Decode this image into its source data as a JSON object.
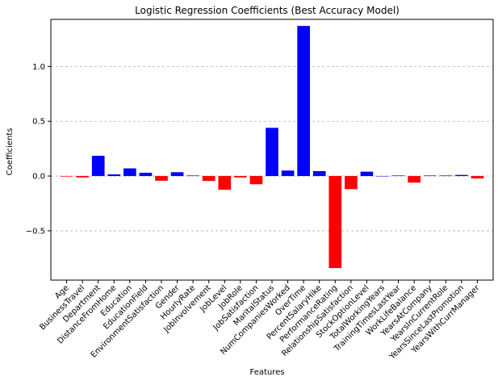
{
  "chart_data": {
    "type": "bar",
    "title": "Logistic Regression Coefficients (Best Accuracy Model)",
    "xlabel": "Features",
    "ylabel": "Coefficients",
    "ylim": [
      -0.95,
      1.43
    ],
    "yticks": [
      -0.5,
      0.0,
      0.5,
      1.0
    ],
    "ytick_labels": [
      "−0.5",
      "0.0",
      "0.5",
      "1.0"
    ],
    "grid": "y-dashed",
    "positive_color": "#0000ff",
    "negative_color": "#ff0000",
    "categories": [
      "Age",
      "BusinessTravel",
      "Department",
      "DistanceFromHome",
      "Education",
      "EducationField",
      "EnvironmentSatisfaction",
      "Gender",
      "HourlyRate",
      "JobInvolvement",
      "JobLevel",
      "JobRole",
      "JobSatisfaction",
      "MaritalStatus",
      "NumCompaniesWorked",
      "OverTime",
      "PercentSalaryHike",
      "PerformanceRating",
      "RelationshipSatisfaction",
      "StockOptionLevel",
      "TotalWorkingYears",
      "TrainingTimesLastYear",
      "WorkLifeBalance",
      "YearsAtCompany",
      "YearsInCurrentRole",
      "YearsSinceLastPromotion",
      "YearsWithCurrManager"
    ],
    "values": [
      -0.005,
      -0.013,
      0.185,
      0.015,
      0.07,
      0.03,
      -0.043,
      0.035,
      0.005,
      -0.045,
      -0.125,
      -0.013,
      -0.075,
      0.44,
      0.05,
      1.37,
      0.045,
      -0.84,
      -0.12,
      0.04,
      0.0,
      0.005,
      -0.06,
      0.005,
      0.005,
      0.01,
      -0.022
    ]
  }
}
